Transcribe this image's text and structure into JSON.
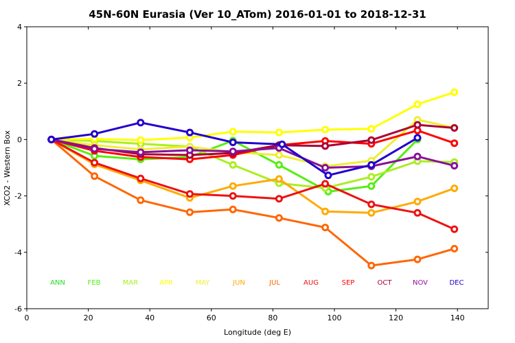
{
  "chart_data": {
    "type": "line",
    "title": "45N-60N Eurasia (Ver 10_ATom)   2016-01-01 to 2018-12-31",
    "xlabel": "Longitude (deg E)",
    "ylabel": "XCO2 - Western Box",
    "xlim": [
      0,
      150
    ],
    "ylim": [
      -6,
      4
    ],
    "xticks": [
      0,
      20,
      40,
      60,
      80,
      100,
      120,
      140
    ],
    "yticks": [
      -6,
      -4,
      -2,
      0,
      2,
      4
    ],
    "grid": false,
    "legend_placement": "bottom, inside plot area",
    "x": [
      8,
      22,
      37,
      53,
      67,
      83,
      97,
      112,
      127,
      139
    ],
    "series": [
      {
        "name": "ANN",
        "color": "#22dd22",
        "x": [
          8
        ],
        "values": [
          0
        ]
      },
      {
        "name": "FEB",
        "color": "#55ee11",
        "x": [
          8,
          22,
          37,
          53,
          67,
          82,
          98,
          112,
          127
        ],
        "values": [
          0,
          -0.58,
          -0.7,
          -0.62,
          -0.04,
          -0.9,
          -1.85,
          -1.65,
          0
        ]
      },
      {
        "name": "MAR",
        "color": "#aaee22",
        "x": [
          8,
          22,
          37,
          53,
          67,
          82,
          97,
          112,
          127,
          139
        ],
        "values": [
          0,
          -0.05,
          -0.15,
          -0.25,
          -0.9,
          -1.55,
          -1.72,
          -1.32,
          -0.77,
          -0.8
        ]
      },
      {
        "name": "APR",
        "color": "#ffff00",
        "x": [
          8,
          22,
          37,
          53,
          67,
          82,
          97,
          112,
          127,
          139
        ],
        "values": [
          0,
          0.02,
          -0.02,
          0.07,
          0.28,
          0.25,
          0.35,
          0.38,
          1.25,
          1.68
        ]
      },
      {
        "name": "MAY",
        "color": "#eeee33",
        "x": [
          8,
          22,
          37,
          53,
          67,
          82,
          97,
          112,
          127,
          139
        ],
        "values": [
          0,
          -0.2,
          -0.35,
          -0.25,
          -0.45,
          -0.55,
          -0.95,
          -0.75,
          0.7,
          0.42
        ]
      },
      {
        "name": "JUN",
        "color": "#ffaa00",
        "x": [
          8,
          22,
          37,
          53,
          67,
          82,
          97,
          112,
          127,
          139
        ],
        "values": [
          0,
          -0.88,
          -1.45,
          -2.07,
          -1.65,
          -1.4,
          -2.55,
          -2.6,
          -2.2,
          -1.73
        ]
      },
      {
        "name": "JUL",
        "color": "#ff6600",
        "x": [
          8,
          22,
          37,
          53,
          67,
          82,
          97,
          112,
          127,
          139
        ],
        "values": [
          0,
          -1.3,
          -2.15,
          -2.58,
          -2.48,
          -2.78,
          -3.12,
          -4.47,
          -4.25,
          -3.87
        ]
      },
      {
        "name": "AUG",
        "color": "#ee1111",
        "x": [
          8,
          22,
          37,
          53,
          67,
          82,
          97,
          112,
          127,
          139
        ],
        "values": [
          0,
          -0.82,
          -1.38,
          -1.93,
          -2.0,
          -2.1,
          -1.57,
          -2.3,
          -2.6,
          -3.18
        ]
      },
      {
        "name": "SEP",
        "color": "#ff0000",
        "x": [
          8,
          22,
          37,
          53,
          67,
          82,
          97,
          112,
          127,
          139
        ],
        "values": [
          0,
          -0.4,
          -0.62,
          -0.7,
          -0.55,
          -0.2,
          -0.05,
          -0.15,
          0.32,
          -0.13
        ]
      },
      {
        "name": "OCT",
        "color": "#aa0033",
        "x": [
          8,
          22,
          37,
          53,
          67,
          82,
          97,
          112,
          127,
          139
        ],
        "values": [
          0,
          -0.3,
          -0.52,
          -0.55,
          -0.48,
          -0.2,
          -0.23,
          -0.02,
          0.52,
          0.41
        ]
      },
      {
        "name": "NOV",
        "color": "#881199",
        "x": [
          8,
          22,
          37,
          53,
          67,
          82,
          97,
          112,
          127,
          139
        ],
        "values": [
          0,
          -0.33,
          -0.45,
          -0.38,
          -0.42,
          -0.3,
          -1.0,
          -0.95,
          -0.6,
          -0.93
        ]
      },
      {
        "name": "DEC",
        "color": "#2200cc",
        "x": [
          8,
          22,
          37,
          53,
          67,
          83,
          98,
          112,
          127
        ],
        "values": [
          0,
          0.2,
          0.6,
          0.25,
          -0.1,
          -0.17,
          -1.27,
          -0.9,
          0.06
        ]
      }
    ]
  }
}
